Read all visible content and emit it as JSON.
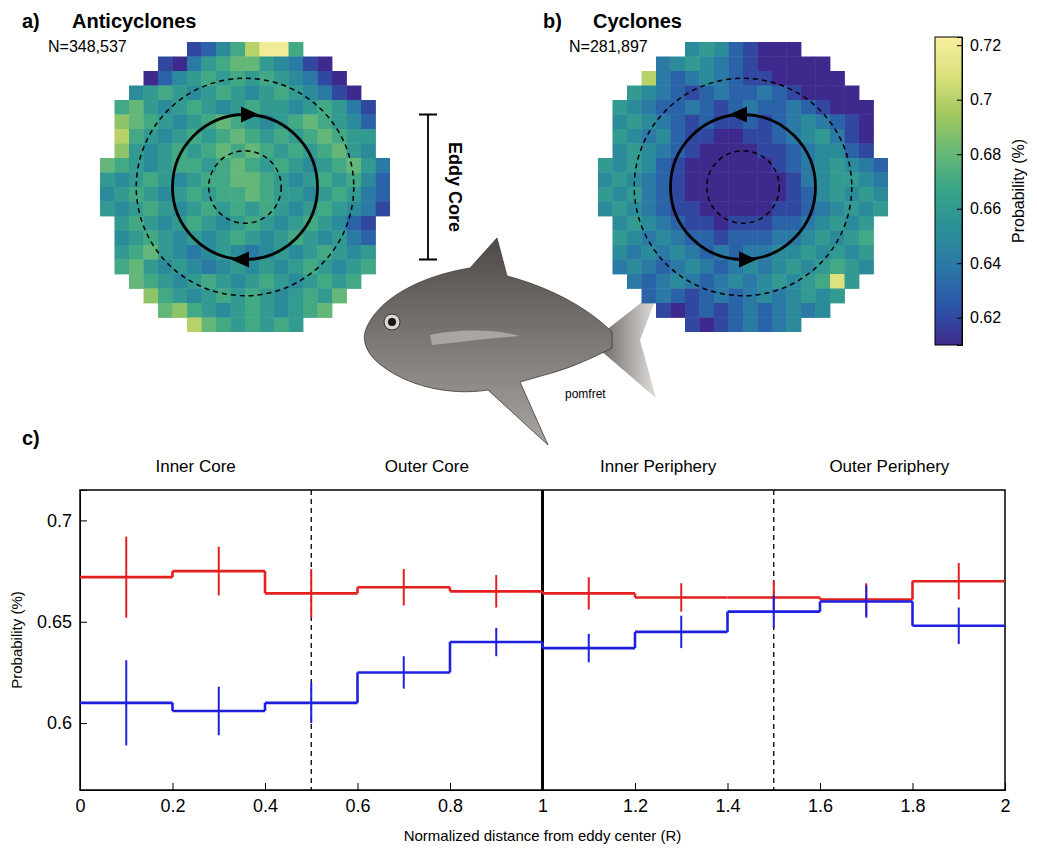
{
  "chart_data": [
    {
      "type": "heatmap",
      "panel": "a)",
      "title": "Anticyclones",
      "subtitle": "N=348,537",
      "extent": [
        -2,
        2
      ],
      "annotation": "Eddy Core",
      "circles": [
        {
          "r": 0.5,
          "line_style": "dashed"
        },
        {
          "r": 1,
          "line_style": "solid"
        },
        {
          "r": 1.5,
          "line_style": "dashed"
        }
      ],
      "cells": [
        [
          null,
          null,
          null,
          null,
          null,
          null,
          0.62,
          0.63,
          0.65,
          0.67,
          0.7,
          0.72,
          0.72,
          0.67,
          null,
          null,
          null,
          null,
          null,
          null
        ],
        [
          null,
          null,
          null,
          null,
          0.62,
          0.61,
          0.64,
          0.66,
          0.67,
          0.68,
          0.68,
          0.66,
          0.65,
          0.64,
          0.62,
          0.61,
          null,
          null,
          null,
          null
        ],
        [
          null,
          null,
          null,
          0.61,
          0.63,
          0.65,
          0.66,
          0.67,
          0.66,
          0.67,
          0.66,
          0.67,
          0.66,
          0.65,
          0.64,
          0.62,
          0.61,
          null,
          null,
          null
        ],
        [
          null,
          null,
          0.65,
          0.66,
          0.67,
          0.66,
          0.65,
          0.66,
          0.67,
          0.66,
          0.65,
          0.66,
          0.67,
          0.66,
          0.65,
          0.64,
          0.62,
          0.61,
          null,
          null
        ],
        [
          null,
          0.67,
          0.68,
          0.66,
          0.65,
          0.66,
          0.67,
          0.66,
          0.65,
          0.66,
          0.67,
          0.66,
          0.66,
          0.65,
          0.66,
          0.67,
          0.66,
          0.64,
          0.62,
          null
        ],
        [
          null,
          0.69,
          0.68,
          0.67,
          0.66,
          0.65,
          0.66,
          0.67,
          0.68,
          0.67,
          0.66,
          0.65,
          0.66,
          0.67,
          0.68,
          0.67,
          0.66,
          0.65,
          0.63,
          null
        ],
        [
          null,
          0.7,
          0.67,
          0.66,
          0.65,
          0.66,
          0.67,
          0.66,
          0.67,
          0.68,
          0.67,
          0.66,
          0.67,
          0.66,
          0.67,
          0.68,
          0.67,
          0.66,
          0.66,
          null
        ],
        [
          null,
          0.69,
          0.66,
          0.65,
          0.66,
          0.67,
          0.66,
          0.67,
          0.68,
          0.67,
          0.68,
          0.67,
          0.66,
          0.67,
          0.66,
          0.67,
          0.68,
          0.66,
          0.65,
          null
        ],
        [
          0.68,
          0.67,
          0.66,
          0.65,
          0.66,
          0.67,
          0.67,
          0.66,
          0.67,
          0.68,
          0.67,
          0.66,
          0.67,
          0.66,
          0.65,
          0.66,
          0.67,
          0.68,
          0.66,
          0.64
        ],
        [
          0.66,
          0.65,
          0.66,
          0.67,
          0.66,
          0.65,
          0.66,
          0.67,
          0.67,
          0.68,
          0.68,
          0.67,
          0.66,
          0.65,
          0.66,
          0.67,
          0.66,
          0.67,
          0.65,
          0.63
        ],
        [
          0.65,
          0.66,
          0.67,
          0.66,
          0.65,
          0.66,
          0.67,
          0.66,
          0.67,
          0.67,
          0.68,
          0.67,
          0.66,
          0.66,
          0.65,
          0.66,
          0.67,
          0.66,
          0.64,
          0.63
        ],
        [
          0.66,
          0.65,
          0.66,
          0.67,
          0.66,
          0.65,
          0.66,
          0.67,
          0.66,
          0.67,
          0.66,
          0.67,
          0.66,
          0.65,
          0.66,
          0.67,
          0.66,
          0.65,
          0.64,
          0.62
        ],
        [
          null,
          0.66,
          0.67,
          0.66,
          0.65,
          0.66,
          0.67,
          0.66,
          0.65,
          0.66,
          0.67,
          0.66,
          0.65,
          0.66,
          0.67,
          0.66,
          0.65,
          0.63,
          0.62,
          null
        ],
        [
          null,
          0.65,
          0.66,
          0.67,
          0.66,
          0.65,
          0.66,
          0.65,
          0.66,
          0.67,
          0.66,
          0.65,
          0.66,
          0.67,
          0.66,
          0.65,
          0.66,
          0.64,
          0.63,
          null
        ],
        [
          null,
          0.66,
          0.67,
          0.68,
          0.66,
          0.65,
          0.64,
          0.65,
          0.66,
          0.65,
          0.64,
          0.65,
          0.66,
          0.65,
          0.66,
          0.67,
          0.66,
          0.65,
          0.66,
          null
        ],
        [
          null,
          0.67,
          0.68,
          0.66,
          0.65,
          0.66,
          0.65,
          0.64,
          0.65,
          0.66,
          0.65,
          0.66,
          0.65,
          0.66,
          0.67,
          0.66,
          0.65,
          0.66,
          0.67,
          null
        ],
        [
          null,
          null,
          0.68,
          0.67,
          0.66,
          0.65,
          0.66,
          0.67,
          0.66,
          0.65,
          0.66,
          0.67,
          0.66,
          0.65,
          0.66,
          0.67,
          0.66,
          0.67,
          null,
          null
        ],
        [
          null,
          null,
          null,
          0.69,
          0.67,
          0.66,
          0.65,
          0.66,
          0.67,
          0.66,
          0.67,
          0.66,
          0.65,
          0.66,
          0.67,
          0.66,
          0.68,
          null,
          null,
          null
        ],
        [
          null,
          null,
          null,
          null,
          0.68,
          0.69,
          0.67,
          0.66,
          0.65,
          0.66,
          0.67,
          0.66,
          0.65,
          0.66,
          0.67,
          0.68,
          null,
          null,
          null,
          null
        ],
        [
          null,
          null,
          null,
          null,
          null,
          null,
          0.7,
          0.68,
          0.67,
          0.66,
          0.67,
          0.66,
          0.67,
          0.66,
          null,
          null,
          null,
          null,
          null,
          null
        ]
      ]
    },
    {
      "type": "heatmap",
      "panel": "b)",
      "title": "Cyclones",
      "subtitle": "N=281,897",
      "extent": [
        -2,
        2
      ],
      "circles": [
        {
          "r": 0.5,
          "line_style": "dashed"
        },
        {
          "r": 1,
          "line_style": "solid"
        },
        {
          "r": 1.5,
          "line_style": "dashed"
        }
      ],
      "cells": [
        [
          null,
          null,
          null,
          null,
          null,
          null,
          0.65,
          0.66,
          0.65,
          0.63,
          0.62,
          0.61,
          0.61,
          0.61,
          null,
          null,
          null,
          null,
          null,
          null
        ],
        [
          null,
          null,
          null,
          null,
          0.64,
          0.65,
          0.66,
          0.65,
          0.64,
          0.63,
          0.62,
          0.61,
          0.61,
          0.61,
          0.61,
          0.61,
          null,
          null,
          null,
          null
        ],
        [
          null,
          null,
          null,
          0.7,
          0.64,
          0.63,
          0.64,
          0.65,
          0.64,
          0.63,
          0.62,
          0.62,
          0.61,
          0.61,
          0.61,
          0.61,
          0.61,
          null,
          null,
          null
        ],
        [
          null,
          null,
          0.66,
          0.65,
          0.64,
          0.63,
          0.62,
          0.63,
          0.64,
          0.63,
          0.63,
          0.64,
          0.63,
          0.62,
          0.61,
          0.61,
          0.61,
          0.61,
          null,
          null
        ],
        [
          null,
          0.66,
          0.65,
          0.64,
          0.63,
          0.63,
          0.64,
          0.63,
          0.62,
          0.63,
          0.64,
          0.63,
          0.63,
          0.64,
          0.63,
          0.62,
          0.61,
          0.61,
          0.61,
          null
        ],
        [
          null,
          0.65,
          0.66,
          0.65,
          0.64,
          0.63,
          0.62,
          0.63,
          0.62,
          0.62,
          0.63,
          0.62,
          0.63,
          0.64,
          0.65,
          0.64,
          0.63,
          0.62,
          0.61,
          null
        ],
        [
          null,
          0.66,
          0.65,
          0.64,
          0.65,
          0.63,
          0.62,
          0.62,
          0.61,
          0.61,
          0.62,
          0.62,
          0.63,
          0.64,
          0.65,
          0.66,
          0.64,
          0.62,
          0.61,
          null
        ],
        [
          null,
          0.65,
          0.66,
          0.65,
          0.64,
          0.63,
          0.62,
          0.61,
          0.61,
          0.61,
          0.61,
          0.62,
          0.62,
          0.63,
          0.64,
          0.65,
          0.65,
          0.63,
          0.62,
          null
        ],
        [
          0.66,
          0.65,
          0.66,
          0.65,
          0.63,
          0.62,
          0.61,
          0.61,
          0.61,
          0.61,
          0.61,
          0.61,
          0.62,
          0.63,
          0.64,
          0.65,
          0.66,
          0.65,
          0.64,
          0.63
        ],
        [
          0.65,
          0.66,
          0.65,
          0.64,
          0.63,
          0.62,
          0.61,
          0.61,
          0.61,
          0.61,
          0.61,
          0.61,
          0.61,
          0.62,
          0.64,
          0.65,
          0.66,
          0.66,
          0.65,
          0.64
        ],
        [
          0.66,
          0.65,
          0.66,
          0.64,
          0.63,
          0.62,
          0.61,
          0.61,
          0.61,
          0.61,
          0.61,
          0.61,
          0.61,
          0.62,
          0.63,
          0.65,
          0.66,
          0.65,
          0.66,
          0.65
        ],
        [
          0.65,
          0.66,
          0.65,
          0.64,
          0.63,
          0.62,
          0.62,
          0.61,
          0.61,
          0.61,
          0.61,
          0.61,
          0.62,
          0.62,
          0.63,
          0.64,
          0.65,
          0.66,
          0.65,
          0.66
        ],
        [
          null,
          0.65,
          0.66,
          0.65,
          0.64,
          0.63,
          0.62,
          0.62,
          0.61,
          0.62,
          0.62,
          0.62,
          0.63,
          0.63,
          0.64,
          0.65,
          0.66,
          0.65,
          0.66,
          null
        ],
        [
          null,
          0.66,
          0.65,
          0.64,
          0.65,
          0.64,
          0.63,
          0.63,
          0.62,
          0.63,
          0.63,
          0.63,
          0.64,
          0.64,
          0.65,
          0.66,
          0.65,
          0.66,
          0.67,
          null
        ],
        [
          null,
          0.65,
          0.64,
          0.65,
          0.64,
          0.65,
          0.64,
          0.63,
          0.64,
          0.63,
          0.64,
          0.64,
          0.65,
          0.65,
          0.66,
          0.65,
          0.66,
          0.65,
          0.66,
          null
        ],
        [
          null,
          0.64,
          0.65,
          0.64,
          0.63,
          0.64,
          0.65,
          0.64,
          0.63,
          0.64,
          0.65,
          0.64,
          0.65,
          0.66,
          0.65,
          0.66,
          0.67,
          0.66,
          0.65,
          null
        ],
        [
          null,
          null,
          0.64,
          0.63,
          0.64,
          0.65,
          0.64,
          0.63,
          0.64,
          0.65,
          0.64,
          0.65,
          0.66,
          0.65,
          0.66,
          0.67,
          0.71,
          0.66,
          null,
          null
        ],
        [
          null,
          null,
          null,
          0.63,
          0.64,
          0.63,
          0.62,
          0.63,
          0.64,
          0.63,
          0.64,
          0.65,
          0.64,
          0.65,
          0.66,
          0.65,
          0.66,
          null,
          null,
          null
        ],
        [
          null,
          null,
          null,
          null,
          0.62,
          0.61,
          0.62,
          0.63,
          0.62,
          0.63,
          0.64,
          0.63,
          0.64,
          0.65,
          0.64,
          0.65,
          null,
          null,
          null,
          null
        ],
        [
          null,
          null,
          null,
          null,
          null,
          null,
          0.62,
          0.61,
          0.62,
          0.63,
          0.64,
          0.63,
          0.64,
          0.65,
          null,
          null,
          null,
          null,
          null,
          null
        ]
      ]
    },
    {
      "type": "line",
      "panel": "c)",
      "x_label": "Normalized distance from eddy center (R)",
      "y_label": "Probability (%)",
      "bins": [
        0,
        0.2,
        0.4,
        0.6,
        0.8,
        1,
        1.2,
        1.4,
        1.6,
        1.8,
        2
      ],
      "xlim": [
        0,
        2
      ],
      "xticks": [
        0,
        0.2,
        0.4,
        0.6,
        0.8,
        1,
        1.2,
        1.4,
        1.6,
        1.8,
        2
      ],
      "ylim": [
        0.567,
        0.715
      ],
      "yticks": [
        0.6,
        0.65,
        0.7
      ],
      "regions": [
        {
          "label": "Inner Core",
          "range": [
            0,
            0.5
          ]
        },
        {
          "label": "Outer Core",
          "range": [
            0.5,
            1
          ]
        },
        {
          "label": "Inner Periphery",
          "range": [
            1,
            1.5
          ]
        },
        {
          "label": "Outer Periphery",
          "range": [
            1.5,
            2
          ]
        }
      ],
      "vlines": [
        {
          "x": 0.5,
          "line_style": "dashed"
        },
        {
          "x": 1,
          "line_style": "solid"
        },
        {
          "x": 1.5,
          "line_style": "dashed"
        }
      ],
      "series": [
        {
          "color": "#e41f1f",
          "line_style": "step",
          "values": [
            0.672,
            0.675,
            0.664,
            0.667,
            0.665,
            0.664,
            0.662,
            0.662,
            0.661,
            0.67
          ],
          "errors": [
            0.02,
            0.012,
            0.012,
            0.009,
            0.008,
            0.008,
            0.007,
            0.008,
            0.008,
            0.009
          ]
        },
        {
          "color": "#1f1fe0",
          "line_style": "step",
          "values": [
            0.61,
            0.606,
            0.61,
            0.625,
            0.64,
            0.637,
            0.645,
            0.655,
            0.66,
            0.648
          ],
          "errors": [
            0.021,
            0.012,
            0.01,
            0.008,
            0.007,
            0.007,
            0.008,
            0.008,
            0.008,
            0.009
          ]
        }
      ]
    }
  ],
  "colorbar": {
    "range": [
      0.61,
      0.723
    ],
    "ticks": [
      0.62,
      0.64,
      0.66,
      0.68,
      0.7,
      0.72
    ],
    "label": "Probability (%)"
  },
  "image_caption": "pomfret"
}
